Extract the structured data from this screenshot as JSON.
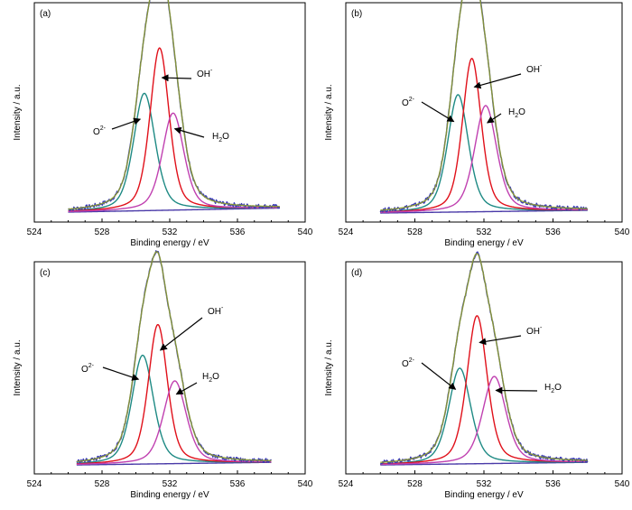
{
  "chart_data": [
    {
      "panel": "(a)",
      "type": "line",
      "xlabel": "Binding energy / eV",
      "ylabel": "Intensity / a.u.",
      "xlim": [
        524,
        540
      ],
      "xticks": [
        "524",
        "528",
        "532",
        "536",
        "540"
      ],
      "x_range": [
        526,
        538.5
      ],
      "baseline": 0.03,
      "peaks": [
        {
          "name": "O2-",
          "center": 530.5,
          "height": 0.52,
          "width": 0.85
        },
        {
          "name": "OH-",
          "center": 531.4,
          "height": 0.72,
          "width": 0.75
        },
        {
          "name": "H2O",
          "center": 532.2,
          "height": 0.43,
          "width": 0.85
        }
      ],
      "annotations": [
        {
          "text": "O",
          "sup": "2-",
          "sub": "",
          "target": "O2-"
        },
        {
          "text": "OH",
          "sup": "-",
          "sub": "",
          "target": "OH-"
        },
        {
          "text": "H",
          "sub": "2",
          "rest": "O",
          "sup": "",
          "target": "H2O"
        }
      ]
    },
    {
      "panel": "(b)",
      "type": "line",
      "xlabel": "Binding energy / eV",
      "ylabel": "Intensity / a.u.",
      "xlim": [
        524,
        540
      ],
      "xticks": [
        "524",
        "528",
        "532",
        "536",
        "540"
      ],
      "x_range": [
        526,
        538
      ],
      "baseline": 0.02,
      "peaks": [
        {
          "name": "O2-",
          "center": 530.5,
          "height": 0.52,
          "width": 0.8
        },
        {
          "name": "OH-",
          "center": 531.3,
          "height": 0.68,
          "width": 0.72
        },
        {
          "name": "H2O",
          "center": 532.1,
          "height": 0.47,
          "width": 0.85
        }
      ],
      "annotations": [
        {
          "text": "O",
          "sup": "2-",
          "sub": "",
          "target": "O2-"
        },
        {
          "text": "OH",
          "sup": "-",
          "sub": "",
          "target": "OH-"
        },
        {
          "text": "H",
          "sub": "2",
          "rest": "O",
          "sup": "",
          "target": "H2O"
        }
      ]
    },
    {
      "panel": "(c)",
      "type": "line",
      "xlabel": "Binding energy / eV",
      "ylabel": "Intensity / a.u.",
      "xlim": [
        524,
        540
      ],
      "xticks": [
        "524",
        "528",
        "532",
        "536",
        "540"
      ],
      "x_range": [
        526.5,
        538
      ],
      "baseline": 0.02,
      "peaks": [
        {
          "name": "O2-",
          "center": 530.4,
          "height": 0.5,
          "width": 0.85
        },
        {
          "name": "OH-",
          "center": 531.3,
          "height": 0.64,
          "width": 0.75
        },
        {
          "name": "H2O",
          "center": 532.3,
          "height": 0.38,
          "width": 0.9
        }
      ],
      "annotations": [
        {
          "text": "O",
          "sup": "2-",
          "sub": "",
          "target": "O2-"
        },
        {
          "text": "OH",
          "sup": "-",
          "sub": "",
          "target": "OH-"
        },
        {
          "text": "H",
          "sub": "2",
          "rest": "O",
          "sup": "",
          "target": "H2O"
        }
      ]
    },
    {
      "panel": "(d)",
      "type": "line",
      "xlabel": "Binding energy / eV",
      "ylabel": "Intensity / a.u.",
      "xlim": [
        524,
        540
      ],
      "xticks": [
        "524",
        "528",
        "532",
        "536",
        "540"
      ],
      "x_range": [
        526,
        538
      ],
      "baseline": 0.02,
      "peaks": [
        {
          "name": "O2-",
          "center": 530.6,
          "height": 0.44,
          "width": 0.85
        },
        {
          "name": "OH-",
          "center": 531.6,
          "height": 0.68,
          "width": 0.78
        },
        {
          "name": "H2O",
          "center": 532.6,
          "height": 0.4,
          "width": 0.9
        }
      ],
      "annotations": [
        {
          "text": "O",
          "sup": "2-",
          "sub": "",
          "target": "O2-"
        },
        {
          "text": "OH",
          "sup": "-",
          "sub": "",
          "target": "OH-"
        },
        {
          "text": "H",
          "sub": "2",
          "rest": "O",
          "sup": "",
          "target": "H2O"
        }
      ]
    }
  ],
  "colors": {
    "fit_envelope": "#8a9a2a",
    "raw_data": "#3a3ab8",
    "O2-": "#1e8a84",
    "OH-": "#e0101a",
    "H2O": "#c040b0",
    "background": "#4a3aa8"
  }
}
